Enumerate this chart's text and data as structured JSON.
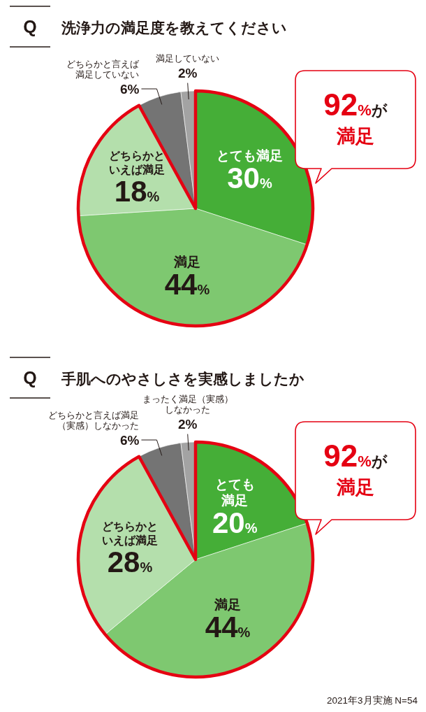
{
  "chart_data": [
    {
      "type": "pie",
      "title": "Q 洗浄力の満足度を教えてください",
      "categories": [
        "とても満足",
        "満足",
        "どちらかといえば満足",
        "どちらかと言えば満足していない",
        "満足していない"
      ],
      "values": [
        30,
        44,
        18,
        6,
        2
      ],
      "value_labels": [
        "30%",
        "44%",
        "18%",
        "6%",
        "2%"
      ],
      "colors": [
        "#45ae37",
        "#7ec870",
        "#b4dfac",
        "#747474",
        "#a3a3a3"
      ],
      "bands": [
        {
          "axis": "y",
          "label": "92%が満足",
          "color": "#e50012"
        }
      ]
    },
    {
      "type": "pie",
      "title": "Q 手肌へのやさしさを実感しましたか",
      "categories": [
        "とても満足",
        "満足",
        "どちらかといえば満足",
        "どちらかと言えば満足（実感）しなかった",
        "まったく満足（実感）しなかった"
      ],
      "values": [
        20,
        44,
        28,
        6,
        2
      ],
      "value_labels": [
        "20%",
        "44%",
        "28%",
        "6%",
        "2%"
      ],
      "colors": [
        "#45ae37",
        "#7ec870",
        "#b4dfac",
        "#747474",
        "#a3a3a3"
      ],
      "bands": [
        {
          "axis": "y",
          "label": "92%が満足",
          "color": "#e50012"
        }
      ],
      "annotations": [
        "2021年3月実施 N=54"
      ]
    }
  ]
}
